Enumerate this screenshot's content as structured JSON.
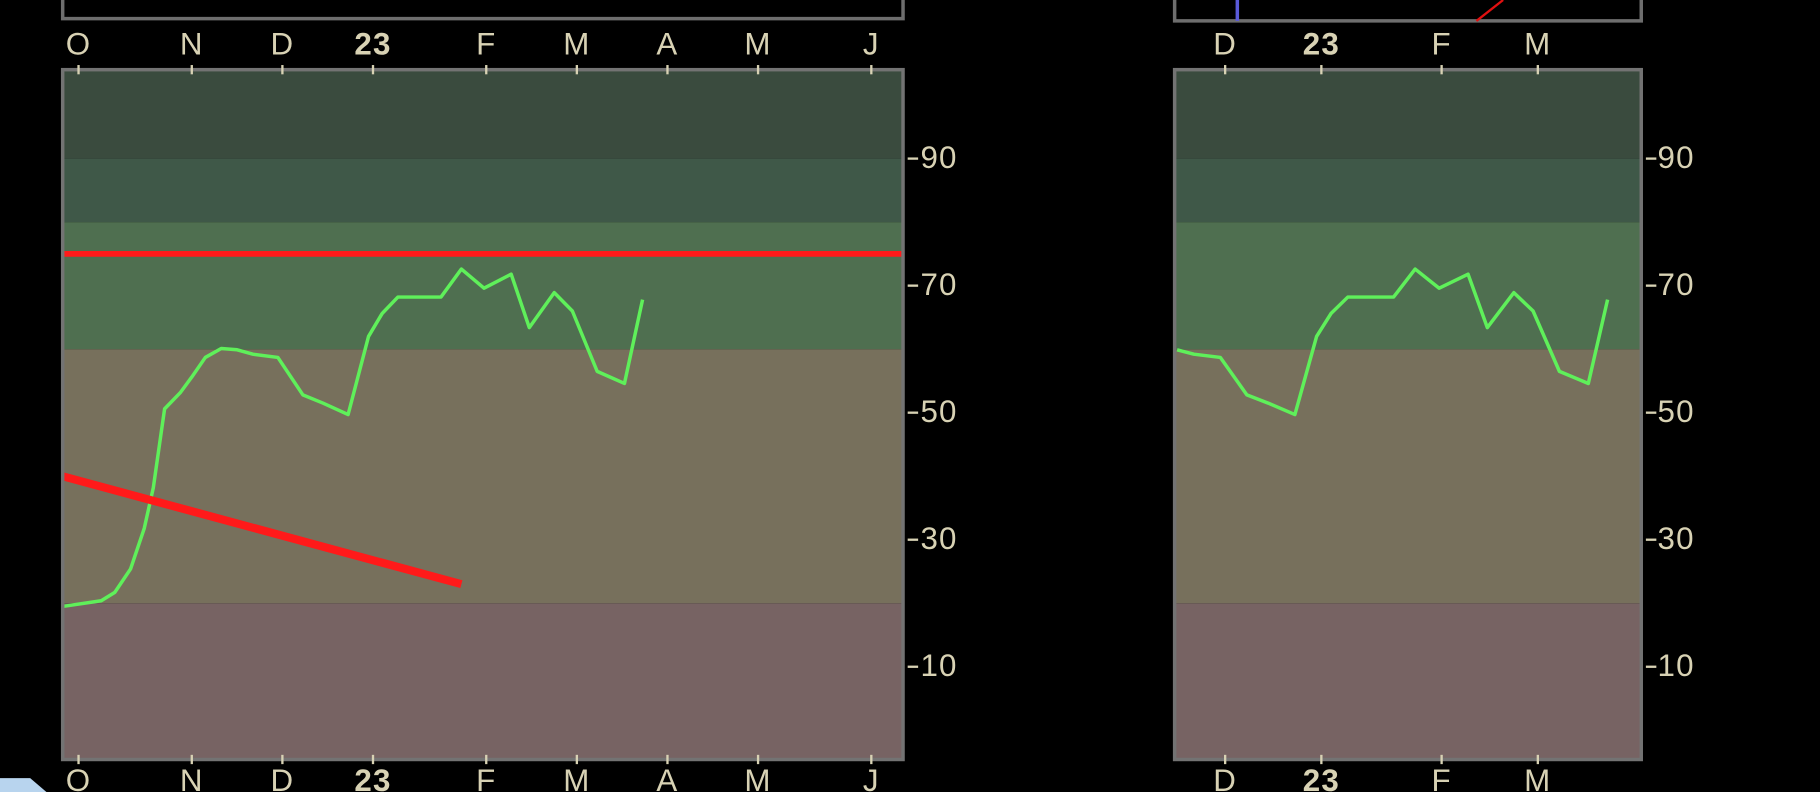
{
  "chart_data": [
    {
      "type": "line",
      "xlim": [
        -0.7,
        36.4
      ],
      "ylim": [
        -4.6,
        104
      ],
      "xticks": [
        {
          "value": 0,
          "label": "O"
        },
        {
          "value": 5,
          "label": "N"
        },
        {
          "value": 9,
          "label": "D"
        },
        {
          "value": 13,
          "label": "23"
        },
        {
          "value": 18,
          "label": "F"
        },
        {
          "value": 22,
          "label": "M"
        },
        {
          "value": 26,
          "label": "A"
        },
        {
          "value": 30,
          "label": "M"
        },
        {
          "value": 35,
          "label": "J"
        }
      ],
      "yticks": [
        10,
        30,
        50,
        70,
        90
      ],
      "band_edges": [
        20,
        60,
        80,
        90
      ],
      "band_colors": [
        "#776363",
        "#77705c",
        "#4f6f50",
        "#3f5848",
        "#3a4b3e"
      ],
      "hlines": [
        {
          "value": 75,
          "color": "#ff1a1a"
        }
      ],
      "series": [
        {
          "color": "#5ff05a",
          "width": 3,
          "x": [
            -0.7,
            1.0,
            1.6,
            2.3,
            2.9,
            3.3,
            3.8,
            4.5,
            5.0,
            5.6,
            6.3,
            7.0,
            7.7,
            8.8,
            9.9,
            10.8,
            11.9,
            12.8,
            13.4,
            14.1,
            16.0,
            16.9,
            17.9,
            19.1,
            19.9,
            21.0,
            21.8,
            22.9,
            24.1,
            24.9
          ],
          "values": [
            19.5,
            20.4,
            21.7,
            25.4,
            31.8,
            38.2,
            50.6,
            53.2,
            55.6,
            58.7,
            60.1,
            59.9,
            59.2,
            58.7,
            52.8,
            51.5,
            49.7,
            62.0,
            65.6,
            68.2,
            68.2,
            72.6,
            69.6,
            71.8,
            63.4,
            68.9,
            66.0,
            56.5,
            54.6,
            67.8
          ]
        },
        {
          "color": "#ff1a1a",
          "width": 7,
          "x": [
            -0.7,
            16.9
          ],
          "values": [
            40,
            23
          ]
        }
      ]
    },
    {
      "type": "line",
      "xlim": [
        6.9,
        26.3
      ],
      "ylim": [
        -4.6,
        104
      ],
      "xticks": [
        {
          "value": 9,
          "label": "D"
        },
        {
          "value": 13,
          "label": "23"
        },
        {
          "value": 18,
          "label": "F"
        },
        {
          "value": 22,
          "label": "M"
        }
      ],
      "yticks": [
        10,
        30,
        50,
        70,
        90
      ],
      "band_edges": [
        20,
        60,
        80,
        90
      ],
      "band_colors": [
        "#776363",
        "#77705c",
        "#4f6f50",
        "#3f5848",
        "#3a4b3e"
      ],
      "hlines": [],
      "series": [
        {
          "color": "#5ff05a",
          "width": 3,
          "x": [
            7.0,
            7.7,
            8.8,
            9.9,
            10.8,
            11.9,
            12.8,
            13.4,
            14.1,
            16.0,
            16.9,
            17.9,
            19.1,
            19.9,
            21.0,
            21.8,
            22.9,
            24.1,
            24.9
          ],
          "values": [
            59.9,
            59.2,
            58.7,
            52.8,
            51.5,
            49.7,
            62.0,
            65.6,
            68.2,
            68.2,
            72.6,
            69.6,
            71.8,
            63.4,
            68.9,
            66.0,
            56.5,
            54.6,
            67.8
          ]
        }
      ]
    }
  ]
}
